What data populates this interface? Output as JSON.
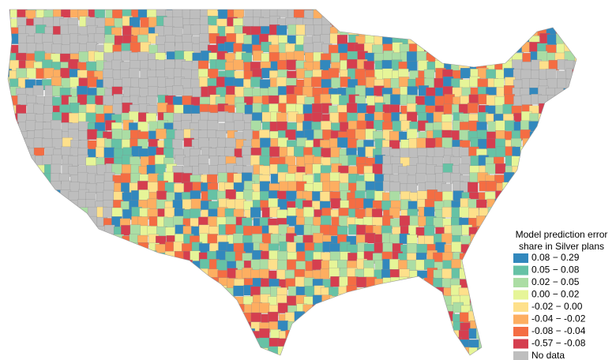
{
  "legend": {
    "title": [
      "Model prediction error",
      "share in Silver plans"
    ],
    "items": [
      {
        "label": "0.08 − 0.29",
        "color": "#3288bd"
      },
      {
        "label": "0.05 − 0.08",
        "color": "#66c2a5"
      },
      {
        "label": "0.02 − 0.05",
        "color": "#abdda4"
      },
      {
        "label": "0.00 − 0.02",
        "color": "#e6f598"
      },
      {
        "label": "-0.02 − 0.00",
        "color": "#fee08b"
      },
      {
        "label": "-0.04 − -0.02",
        "color": "#fdae61"
      },
      {
        "label": "-0.08 − -0.04",
        "color": "#f46d43"
      },
      {
        "label": "-0.57 − -0.08",
        "color": "#d53e4f"
      },
      {
        "label": "No data",
        "color": "#bebebe"
      }
    ]
  }
}
